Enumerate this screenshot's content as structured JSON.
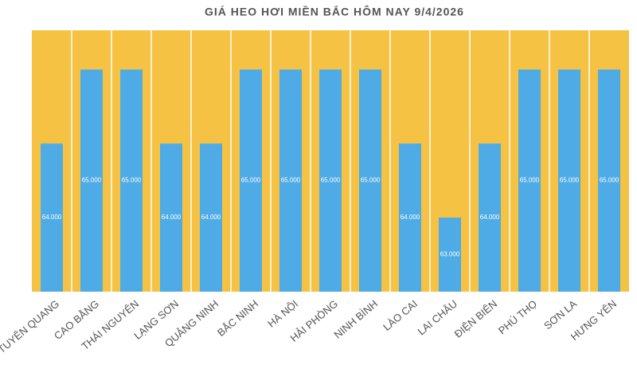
{
  "chart_data": {
    "type": "bar",
    "title": "GIÁ HEO HƠI MIỀN BẮC HÔM NAY 9/4/2026",
    "categories": [
      "TUYÊN QUANG",
      "CAO BẰNG",
      "THÁI NGUYÊN",
      "LẠNG SƠN",
      "QUẢNG NINH",
      "BẮC NINH",
      "HÀ NỘI",
      "HẢI PHÒNG",
      "NINH BÌNH",
      "LÀO CAI",
      "LAI CHÂU",
      "ĐIỆN BIÊN",
      "PHÚ THỌ",
      "SƠN LA",
      "HƯNG YÊN"
    ],
    "values": [
      64000,
      65000,
      65000,
      64000,
      64000,
      65000,
      65000,
      65000,
      65000,
      64000,
      63000,
      64000,
      65000,
      65000,
      65000
    ],
    "value_labels": [
      "64.000",
      "65.000",
      "65.000",
      "64.000",
      "64.000",
      "65.000",
      "65.000",
      "65.000",
      "65.000",
      "64.000",
      "63.000",
      "64.000",
      "65.000",
      "65.000",
      "65.000"
    ],
    "color": "#4eabe6",
    "background": "#f5c244",
    "ylim": [
      62000,
      65530
    ]
  }
}
